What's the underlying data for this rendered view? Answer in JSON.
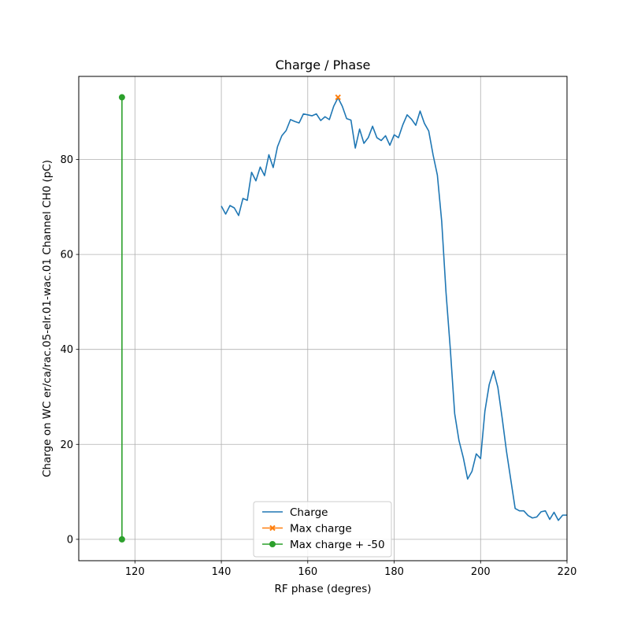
{
  "chart_data": {
    "type": "line",
    "title": "Charge / Phase",
    "xlabel": "RF phase (degres)",
    "ylabel": "Charge on WC er/ca/rac.05-elr.01-wac.01 Channel CH0 (pC)",
    "xlim": [
      107,
      220
    ],
    "ylim": [
      -4.5,
      97.5
    ],
    "xticks": [
      120,
      140,
      160,
      180,
      200,
      220
    ],
    "yticks": [
      0,
      20,
      40,
      60,
      80
    ],
    "grid": true,
    "legend_position": "lower center",
    "series": [
      {
        "name": "Charge",
        "color": "#1f77b4",
        "marker": "none",
        "x": [
          140,
          141,
          142,
          143,
          144,
          145,
          146,
          147,
          148,
          149,
          150,
          151,
          152,
          153,
          154,
          155,
          156,
          157,
          158,
          159,
          160,
          161,
          162,
          163,
          164,
          165,
          166,
          167,
          168,
          169,
          170,
          171,
          172,
          173,
          174,
          175,
          176,
          177,
          178,
          179,
          180,
          181,
          182,
          183,
          184,
          185,
          186,
          187,
          188,
          189,
          190,
          191,
          192,
          193,
          194,
          195,
          196,
          197,
          198,
          199,
          200,
          201,
          202,
          203,
          204,
          205,
          206,
          207,
          208,
          209,
          210,
          211,
          212,
          213,
          214,
          215,
          216,
          217,
          218,
          219,
          220
        ],
        "y": [
          70.2,
          68.5,
          70.3,
          69.8,
          68.2,
          71.8,
          71.4,
          77.3,
          75.5,
          78.4,
          76.6,
          81.0,
          78.3,
          82.7,
          85.0,
          86.1,
          88.4,
          88.0,
          87.7,
          89.6,
          89.4,
          89.2,
          89.6,
          88.2,
          89.0,
          88.4,
          91.2,
          93.0,
          91.2,
          88.6,
          88.3,
          82.4,
          86.4,
          83.4,
          84.6,
          87.0,
          84.6,
          84.0,
          85.0,
          83.0,
          85.2,
          84.6,
          87.3,
          89.4,
          88.5,
          87.2,
          90.2,
          87.6,
          86.0,
          81.0,
          76.7,
          67.0,
          52.0,
          40.0,
          26.5,
          20.8,
          17.2,
          12.7,
          14.3,
          18.0,
          17.0,
          27.0,
          32.6,
          35.5,
          32.0,
          25.5,
          18.5,
          12.5,
          6.5,
          6.0,
          6.0,
          5.0,
          4.5,
          4.7,
          5.8,
          6.0,
          4.2,
          5.7,
          4.0,
          5.1,
          5.1
        ]
      },
      {
        "name": "Max charge",
        "color": "#ff7f0e",
        "marker": "x",
        "x": [
          167
        ],
        "y": [
          93.1
        ]
      },
      {
        "name": "Max charge + -50",
        "color": "#2ca02c",
        "marker": "o",
        "x": [
          117,
          117
        ],
        "y": [
          0,
          93.1
        ]
      }
    ]
  }
}
